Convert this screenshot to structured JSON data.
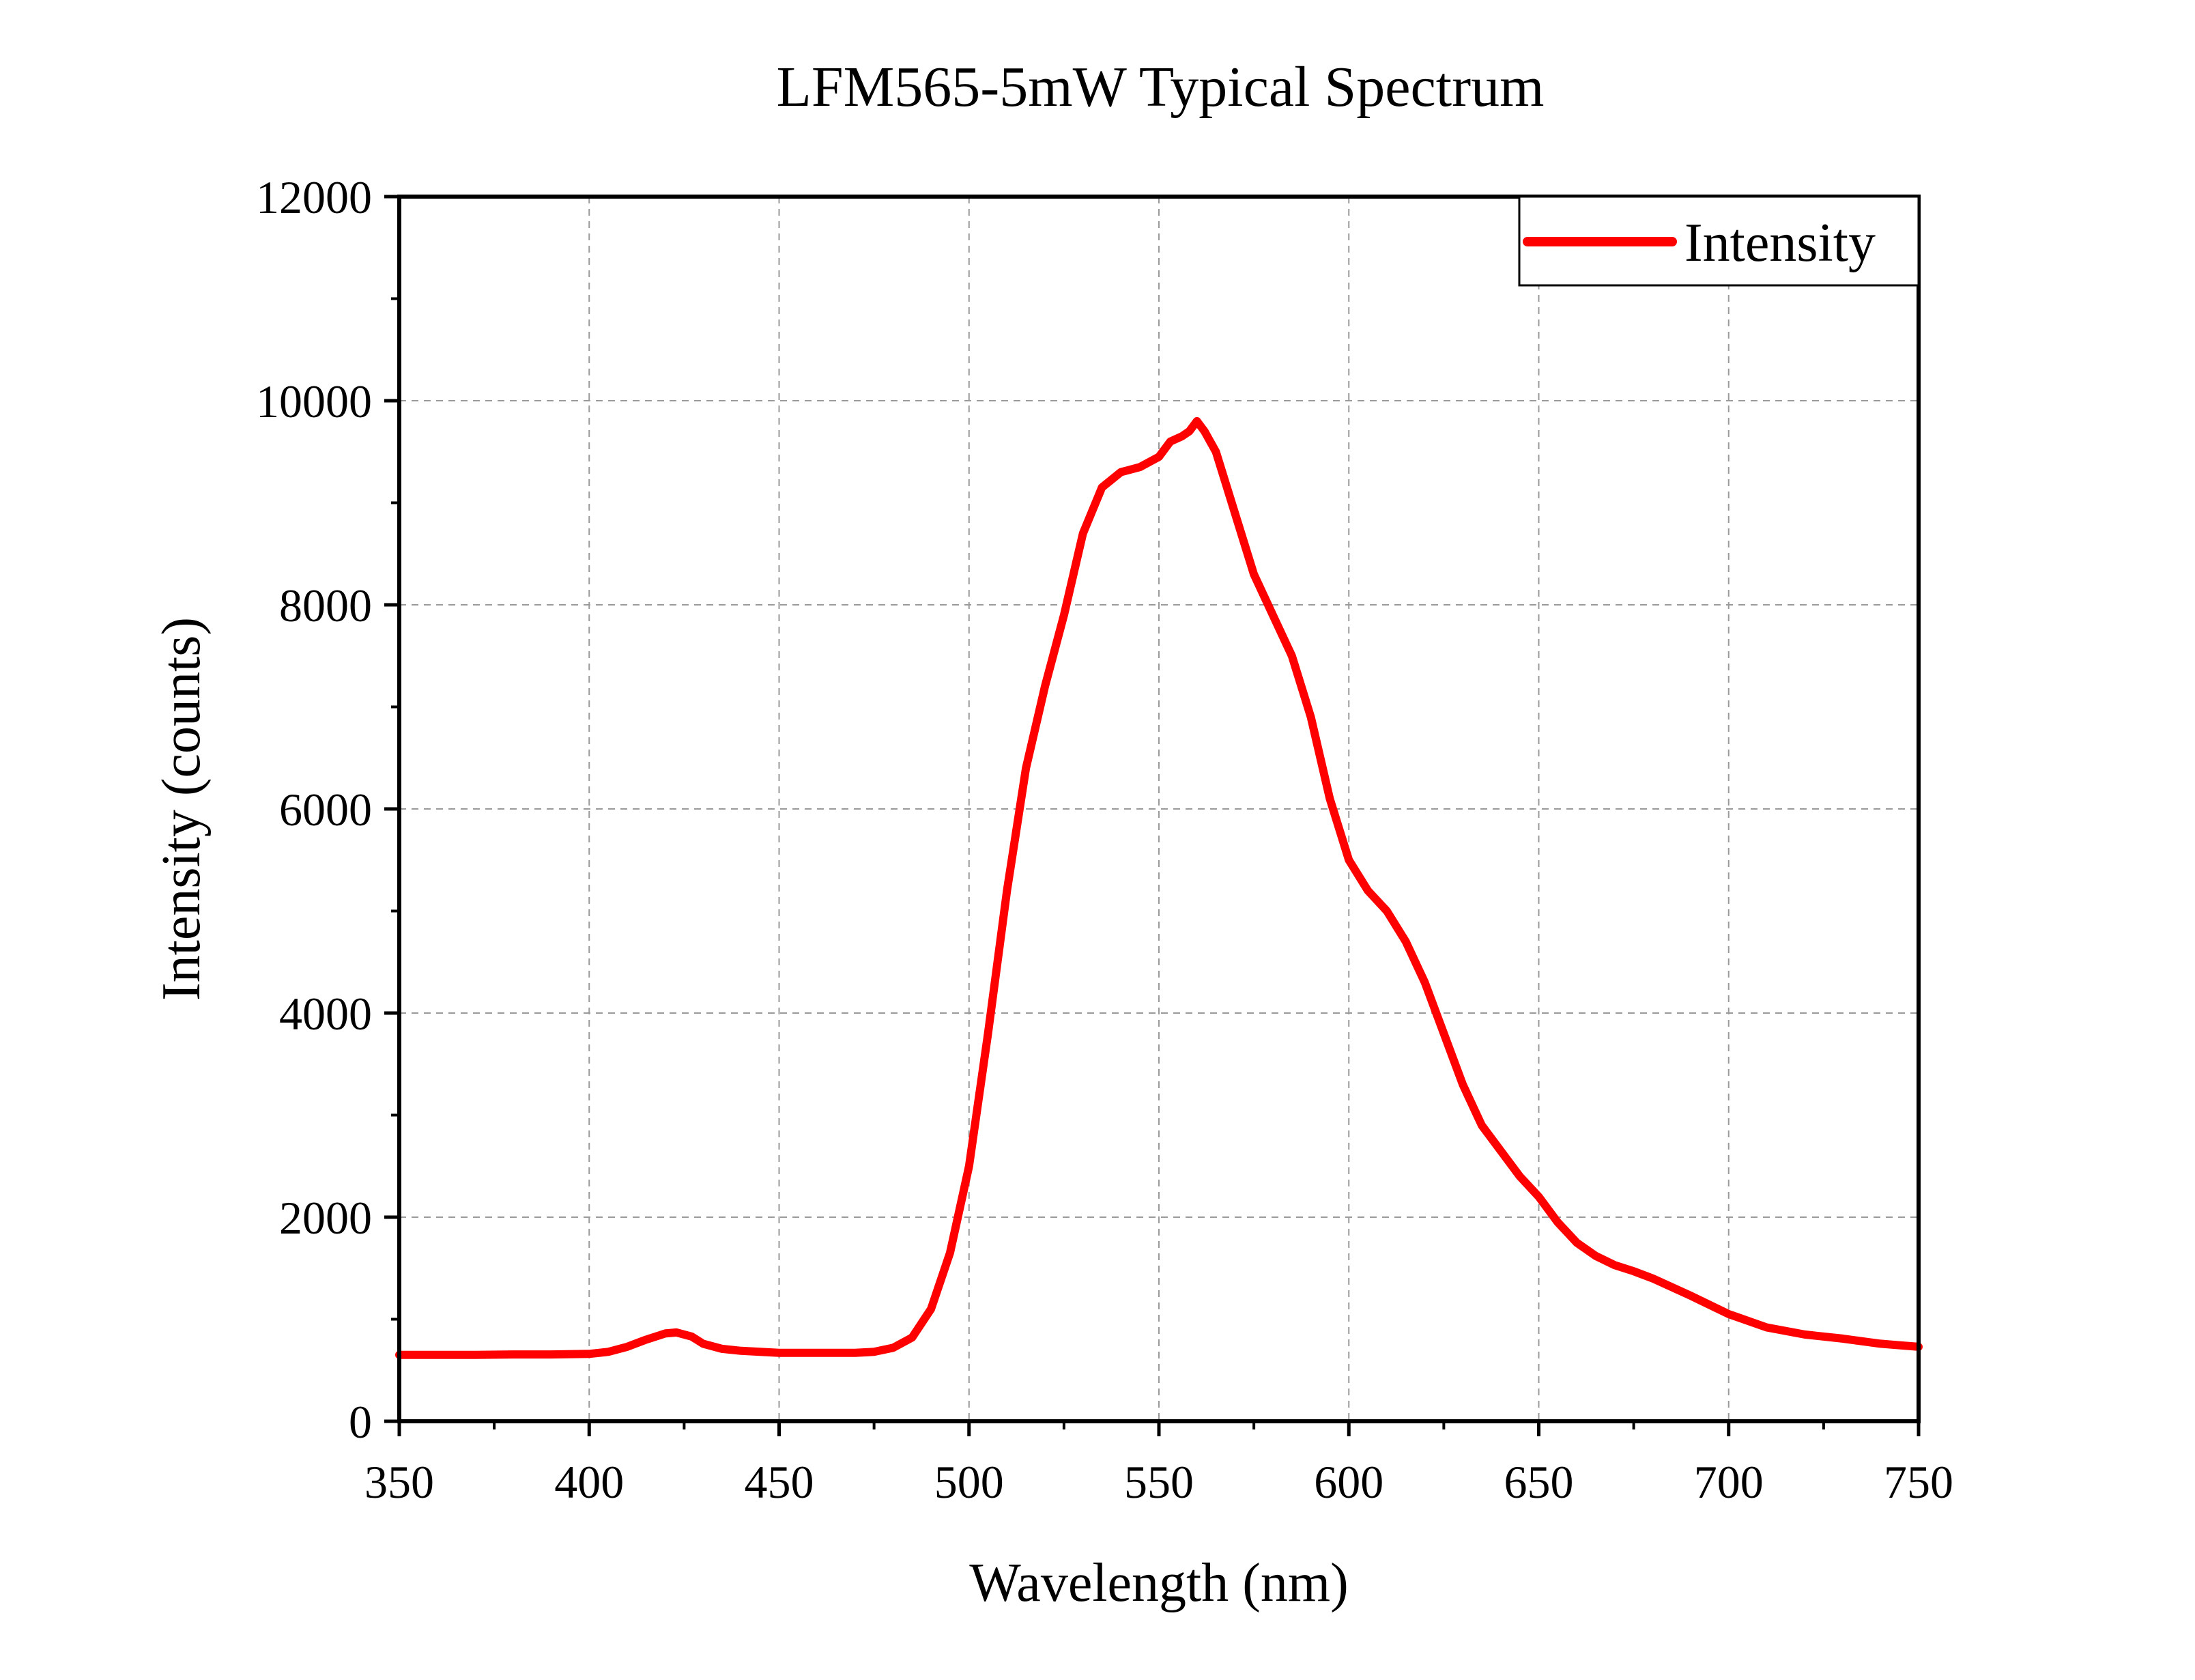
{
  "chart_data": {
    "type": "line",
    "title": "LFM565-5mW Typical Spectrum",
    "xlabel": "Wavelength (nm)",
    "ylabel": "Intensity (counts)",
    "xlim": [
      350,
      750
    ],
    "ylim": [
      0,
      12000
    ],
    "xticks": [
      "350",
      "400",
      "450",
      "500",
      "550",
      "600",
      "650",
      "700",
      "750"
    ],
    "yticks": [
      "0",
      "2000",
      "4000",
      "6000",
      "8000",
      "10000",
      "12000"
    ],
    "grid": true,
    "legend_position": "top-right",
    "series": [
      {
        "name": "Intensity",
        "color": "#ff0000",
        "x": [
          350,
          360,
          370,
          380,
          390,
          400,
          405,
          410,
          415,
          420,
          423,
          427,
          430,
          435,
          440,
          450,
          460,
          470,
          475,
          480,
          485,
          490,
          495,
          500,
          505,
          510,
          515,
          520,
          525,
          530,
          535,
          540,
          545,
          550,
          553,
          556,
          558,
          560,
          562,
          565,
          570,
          575,
          580,
          585,
          590,
          595,
          600,
          605,
          610,
          615,
          620,
          625,
          630,
          635,
          640,
          645,
          650,
          655,
          660,
          665,
          670,
          675,
          680,
          690,
          700,
          710,
          720,
          730,
          740,
          750
        ],
        "y": [
          650,
          650,
          650,
          655,
          655,
          660,
          680,
          730,
          800,
          860,
          870,
          830,
          760,
          710,
          690,
          670,
          670,
          670,
          680,
          720,
          820,
          1100,
          1650,
          2500,
          3800,
          5200,
          6400,
          7200,
          7900,
          8700,
          9150,
          9300,
          9350,
          9450,
          9600,
          9650,
          9700,
          9800,
          9700,
          9500,
          8900,
          8300,
          7900,
          7500,
          6900,
          6100,
          5500,
          5200,
          5000,
          4700,
          4300,
          3800,
          3300,
          2900,
          2650,
          2400,
          2200,
          1950,
          1750,
          1620,
          1530,
          1470,
          1400,
          1230,
          1050,
          920,
          850,
          810,
          760,
          730
        ]
      }
    ]
  }
}
